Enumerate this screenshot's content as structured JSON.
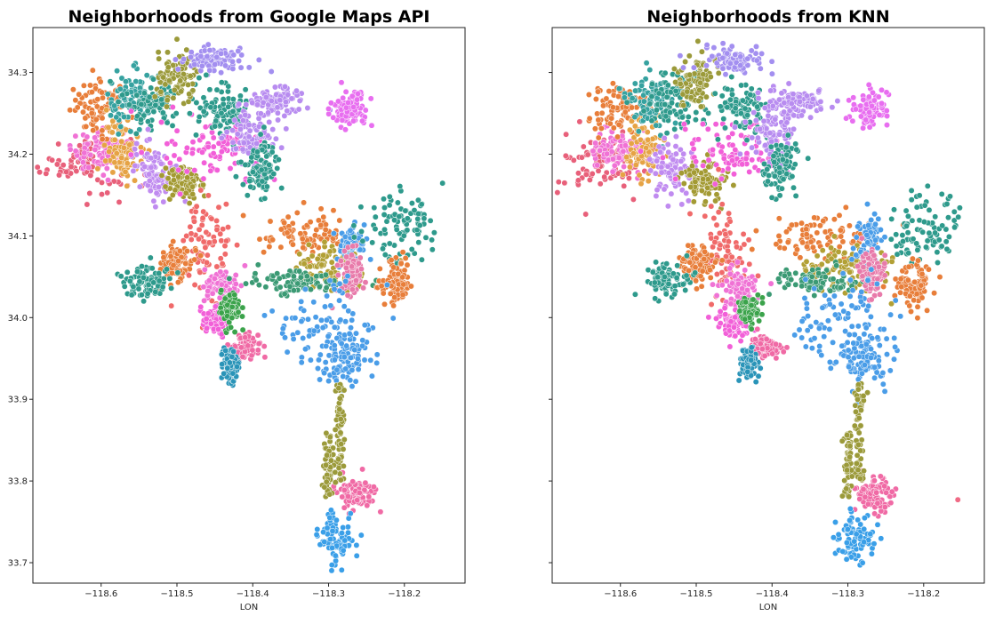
{
  "chart_data": [
    {
      "type": "scatter",
      "title": "Neighborhoods from Google Maps API",
      "xlabel": "LON",
      "ylabel": "",
      "xlim": [
        -118.69,
        -118.12
      ],
      "ylim": [
        33.675,
        34.355
      ],
      "xticks": [
        "−118.6",
        "−118.5",
        "−118.4",
        "−118.3",
        "−118.2"
      ],
      "yticks": [
        "34.3",
        "34.2",
        "34.1",
        "34.0",
        "33.9",
        "33.8",
        "33.7"
      ],
      "grid": false,
      "legend": "none",
      "clusters": [
        {
          "color": "#e8607a",
          "lon": -118.62,
          "lat": 34.19,
          "sx": 0.03,
          "sy": 0.018
        },
        {
          "color": "#f072d5",
          "lon": -118.6,
          "lat": 34.205,
          "sx": 0.02,
          "sy": 0.012
        },
        {
          "color": "#e87e3a",
          "lon": -118.6,
          "lat": 34.255,
          "sx": 0.02,
          "sy": 0.016
        },
        {
          "color": "#e6a345",
          "lon": -118.57,
          "lat": 34.205,
          "sx": 0.012,
          "sy": 0.018
        },
        {
          "color": "#36a2a0",
          "lon": -118.56,
          "lat": 34.265,
          "sx": 0.016,
          "sy": 0.018
        },
        {
          "color": "#2e9a8c",
          "lon": -118.53,
          "lat": 34.265,
          "sx": 0.02,
          "sy": 0.018
        },
        {
          "color": "#c08bf0",
          "lon": -118.53,
          "lat": 34.18,
          "sx": 0.014,
          "sy": 0.018
        },
        {
          "color": "#a39a33",
          "lon": -118.49,
          "lat": 34.165,
          "sx": 0.014,
          "sy": 0.012
        },
        {
          "color": "#9b9a3a",
          "lon": -118.5,
          "lat": 34.29,
          "sx": 0.014,
          "sy": 0.016
        },
        {
          "color": "#f25fd8",
          "lon": -118.45,
          "lat": 34.205,
          "sx": 0.035,
          "sy": 0.018
        },
        {
          "color": "#a38ff0",
          "lon": -118.45,
          "lat": 34.315,
          "sx": 0.022,
          "sy": 0.008
        },
        {
          "color": "#2e9a8c",
          "lon": -118.44,
          "lat": 34.255,
          "sx": 0.018,
          "sy": 0.016
        },
        {
          "color": "#b88cf0",
          "lon": -118.4,
          "lat": 34.225,
          "sx": 0.018,
          "sy": 0.018
        },
        {
          "color": "#b88cf0",
          "lon": -118.37,
          "lat": 34.265,
          "sx": 0.02,
          "sy": 0.008
        },
        {
          "color": "#e86ef0",
          "lon": -118.27,
          "lat": 34.255,
          "sx": 0.012,
          "sy": 0.01
        },
        {
          "color": "#2e9a8c",
          "lon": -118.39,
          "lat": 34.185,
          "sx": 0.012,
          "sy": 0.016
        },
        {
          "color": "#f06a6a",
          "lon": -118.46,
          "lat": 34.085,
          "sx": 0.016,
          "sy": 0.03
        },
        {
          "color": "#e87e3a",
          "lon": -118.5,
          "lat": 34.065,
          "sx": 0.012,
          "sy": 0.012
        },
        {
          "color": "#f072d5",
          "lon": -118.44,
          "lat": 34.04,
          "sx": 0.012,
          "sy": 0.012
        },
        {
          "color": "#2e9a8c",
          "lon": -118.54,
          "lat": 34.045,
          "sx": 0.016,
          "sy": 0.01
        },
        {
          "color": "#e87e3a",
          "lon": -118.33,
          "lat": 34.1,
          "sx": 0.035,
          "sy": 0.014
        },
        {
          "color": "#b2a035",
          "lon": -118.3,
          "lat": 34.06,
          "sx": 0.025,
          "sy": 0.014
        },
        {
          "color": "#3b9a74",
          "lon": -118.34,
          "lat": 34.045,
          "sx": 0.03,
          "sy": 0.008
        },
        {
          "color": "#4a9de8",
          "lon": -118.27,
          "lat": 34.09,
          "sx": 0.008,
          "sy": 0.014
        },
        {
          "color": "#e87aaa",
          "lon": -118.27,
          "lat": 34.055,
          "sx": 0.008,
          "sy": 0.014
        },
        {
          "color": "#2e9a8c",
          "lon": -118.2,
          "lat": 34.11,
          "sx": 0.025,
          "sy": 0.022
        },
        {
          "color": "#e87e3a",
          "lon": -118.21,
          "lat": 34.04,
          "sx": 0.012,
          "sy": 0.014
        },
        {
          "color": "#4a9de8",
          "lon": -118.31,
          "lat": 33.99,
          "sx": 0.035,
          "sy": 0.028
        },
        {
          "color": "#4a9de8",
          "lon": -118.28,
          "lat": 33.95,
          "sx": 0.018,
          "sy": 0.015
        },
        {
          "color": "#f25fd8",
          "lon": -118.45,
          "lat": 33.995,
          "sx": 0.01,
          "sy": 0.009
        },
        {
          "color": "#f06aa5",
          "lon": -118.41,
          "lat": 33.965,
          "sx": 0.01,
          "sy": 0.007
        },
        {
          "color": "#3ba34b",
          "lon": -118.43,
          "lat": 34.01,
          "sx": 0.007,
          "sy": 0.008
        },
        {
          "color": "#2a94b8",
          "lon": -118.43,
          "lat": 33.945,
          "sx": 0.006,
          "sy": 0.01
        },
        {
          "color": "#f06aa5",
          "lon": -118.265,
          "lat": 33.785,
          "sx": 0.012,
          "sy": 0.01
        },
        {
          "color": "#3a9fe8",
          "lon": -118.29,
          "lat": 33.73,
          "sx": 0.012,
          "sy": 0.016
        }
      ],
      "corridors": [
        {
          "color": "#9b9a3a",
          "lon": -118.285,
          "lat0": 33.92,
          "lat1": 33.8
        },
        {
          "color": "#9b9a3a",
          "lon": -118.3,
          "lat0": 33.86,
          "lat1": 33.78
        }
      ],
      "outliers": []
    },
    {
      "type": "scatter",
      "title": "Neighborhoods from KNN",
      "xlabel": "LON",
      "ylabel": "",
      "xlim": [
        -118.69,
        -118.12
      ],
      "ylim": [
        33.675,
        34.355
      ],
      "xticks": [
        "−118.6",
        "−118.5",
        "−118.4",
        "−118.3",
        "−118.2"
      ],
      "yticks": [],
      "grid": false,
      "legend": "none",
      "clusters": [
        {
          "color": "#e8607a",
          "lon": -118.62,
          "lat": 34.19,
          "sx": 0.03,
          "sy": 0.018
        },
        {
          "color": "#f072d5",
          "lon": -118.6,
          "lat": 34.205,
          "sx": 0.02,
          "sy": 0.012
        },
        {
          "color": "#e87e3a",
          "lon": -118.6,
          "lat": 34.255,
          "sx": 0.02,
          "sy": 0.016
        },
        {
          "color": "#e6a345",
          "lon": -118.57,
          "lat": 34.205,
          "sx": 0.012,
          "sy": 0.018
        },
        {
          "color": "#36a2a0",
          "lon": -118.56,
          "lat": 34.265,
          "sx": 0.016,
          "sy": 0.018
        },
        {
          "color": "#2e9a8c",
          "lon": -118.53,
          "lat": 34.265,
          "sx": 0.02,
          "sy": 0.018
        },
        {
          "color": "#c08bf0",
          "lon": -118.53,
          "lat": 34.18,
          "sx": 0.014,
          "sy": 0.018
        },
        {
          "color": "#a39a33",
          "lon": -118.49,
          "lat": 34.165,
          "sx": 0.014,
          "sy": 0.012
        },
        {
          "color": "#9b9a3a",
          "lon": -118.5,
          "lat": 34.29,
          "sx": 0.014,
          "sy": 0.016
        },
        {
          "color": "#f25fd8",
          "lon": -118.45,
          "lat": 34.205,
          "sx": 0.035,
          "sy": 0.018
        },
        {
          "color": "#a38ff0",
          "lon": -118.45,
          "lat": 34.315,
          "sx": 0.022,
          "sy": 0.008
        },
        {
          "color": "#2e9a8c",
          "lon": -118.44,
          "lat": 34.255,
          "sx": 0.018,
          "sy": 0.016
        },
        {
          "color": "#b88cf0",
          "lon": -118.4,
          "lat": 34.225,
          "sx": 0.018,
          "sy": 0.018
        },
        {
          "color": "#b88cf0",
          "lon": -118.37,
          "lat": 34.265,
          "sx": 0.02,
          "sy": 0.008
        },
        {
          "color": "#e86ef0",
          "lon": -118.27,
          "lat": 34.255,
          "sx": 0.012,
          "sy": 0.01
        },
        {
          "color": "#2e9a8c",
          "lon": -118.39,
          "lat": 34.185,
          "sx": 0.012,
          "sy": 0.016
        },
        {
          "color": "#f06a6a",
          "lon": -118.46,
          "lat": 34.085,
          "sx": 0.016,
          "sy": 0.03
        },
        {
          "color": "#e87e3a",
          "lon": -118.5,
          "lat": 34.065,
          "sx": 0.012,
          "sy": 0.012
        },
        {
          "color": "#f072d5",
          "lon": -118.44,
          "lat": 34.04,
          "sx": 0.012,
          "sy": 0.012
        },
        {
          "color": "#2e9a8c",
          "lon": -118.54,
          "lat": 34.045,
          "sx": 0.016,
          "sy": 0.01
        },
        {
          "color": "#e87e3a",
          "lon": -118.33,
          "lat": 34.1,
          "sx": 0.035,
          "sy": 0.014
        },
        {
          "color": "#b2a035",
          "lon": -118.3,
          "lat": 34.06,
          "sx": 0.025,
          "sy": 0.014
        },
        {
          "color": "#3b9a74",
          "lon": -118.34,
          "lat": 34.045,
          "sx": 0.03,
          "sy": 0.008
        },
        {
          "color": "#4a9de8",
          "lon": -118.27,
          "lat": 34.09,
          "sx": 0.008,
          "sy": 0.014
        },
        {
          "color": "#e87aaa",
          "lon": -118.27,
          "lat": 34.055,
          "sx": 0.008,
          "sy": 0.014
        },
        {
          "color": "#2e9a8c",
          "lon": -118.2,
          "lat": 34.11,
          "sx": 0.025,
          "sy": 0.022
        },
        {
          "color": "#e87e3a",
          "lon": -118.21,
          "lat": 34.04,
          "sx": 0.012,
          "sy": 0.014
        },
        {
          "color": "#4a9de8",
          "lon": -118.31,
          "lat": 33.99,
          "sx": 0.035,
          "sy": 0.028
        },
        {
          "color": "#4a9de8",
          "lon": -118.28,
          "lat": 33.95,
          "sx": 0.018,
          "sy": 0.015
        },
        {
          "color": "#f25fd8",
          "lon": -118.45,
          "lat": 33.995,
          "sx": 0.01,
          "sy": 0.009
        },
        {
          "color": "#f06aa5",
          "lon": -118.41,
          "lat": 33.965,
          "sx": 0.01,
          "sy": 0.007
        },
        {
          "color": "#3ba34b",
          "lon": -118.43,
          "lat": 34.01,
          "sx": 0.007,
          "sy": 0.008
        },
        {
          "color": "#2a94b8",
          "lon": -118.43,
          "lat": 33.945,
          "sx": 0.006,
          "sy": 0.01
        },
        {
          "color": "#f06aa5",
          "lon": -118.265,
          "lat": 33.785,
          "sx": 0.012,
          "sy": 0.01
        },
        {
          "color": "#3a9fe8",
          "lon": -118.29,
          "lat": 33.73,
          "sx": 0.012,
          "sy": 0.016
        }
      ],
      "corridors": [
        {
          "color": "#9b9a3a",
          "lon": -118.285,
          "lat0": 33.92,
          "lat1": 33.8
        },
        {
          "color": "#9b9a3a",
          "lon": -118.3,
          "lat0": 33.86,
          "lat1": 33.78
        }
      ],
      "outliers": [
        {
          "color": "#f06a85",
          "lon": -118.155,
          "lat": 33.777
        }
      ]
    }
  ]
}
